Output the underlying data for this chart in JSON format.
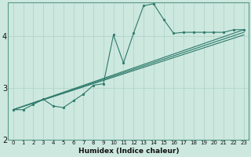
{
  "xlabel": "Humidex (Indice chaleur)",
  "ylabel": "",
  "background_color": "#cde8df",
  "grid_color": "#b0d4c8",
  "line_color": "#2d7a6a",
  "xlim": [
    -0.5,
    23.5
  ],
  "ylim": [
    2.0,
    4.65
  ],
  "yticks": [
    2,
    3,
    4
  ],
  "xticks": [
    0,
    1,
    2,
    3,
    4,
    5,
    6,
    7,
    8,
    9,
    10,
    11,
    12,
    13,
    14,
    15,
    16,
    17,
    18,
    19,
    20,
    21,
    22,
    23
  ],
  "curve1_x": [
    0,
    1,
    2,
    3,
    4,
    5,
    6,
    7,
    8,
    9,
    10,
    11,
    12,
    13,
    14,
    15,
    16,
    17,
    18,
    19,
    20,
    21,
    22,
    23
  ],
  "curve1_y": [
    2.58,
    2.58,
    2.68,
    2.78,
    2.65,
    2.62,
    2.75,
    2.88,
    3.05,
    3.08,
    4.02,
    3.48,
    4.05,
    4.58,
    4.62,
    4.32,
    4.05,
    4.07,
    4.07,
    4.07,
    4.07,
    4.07,
    4.12,
    4.12
  ],
  "line1_x": [
    0,
    23
  ],
  "line1_y": [
    2.58,
    4.12
  ],
  "line2_x": [
    0,
    23
  ],
  "line2_y": [
    2.58,
    4.07
  ],
  "line3_x": [
    0,
    23
  ],
  "line3_y": [
    2.58,
    4.02
  ]
}
